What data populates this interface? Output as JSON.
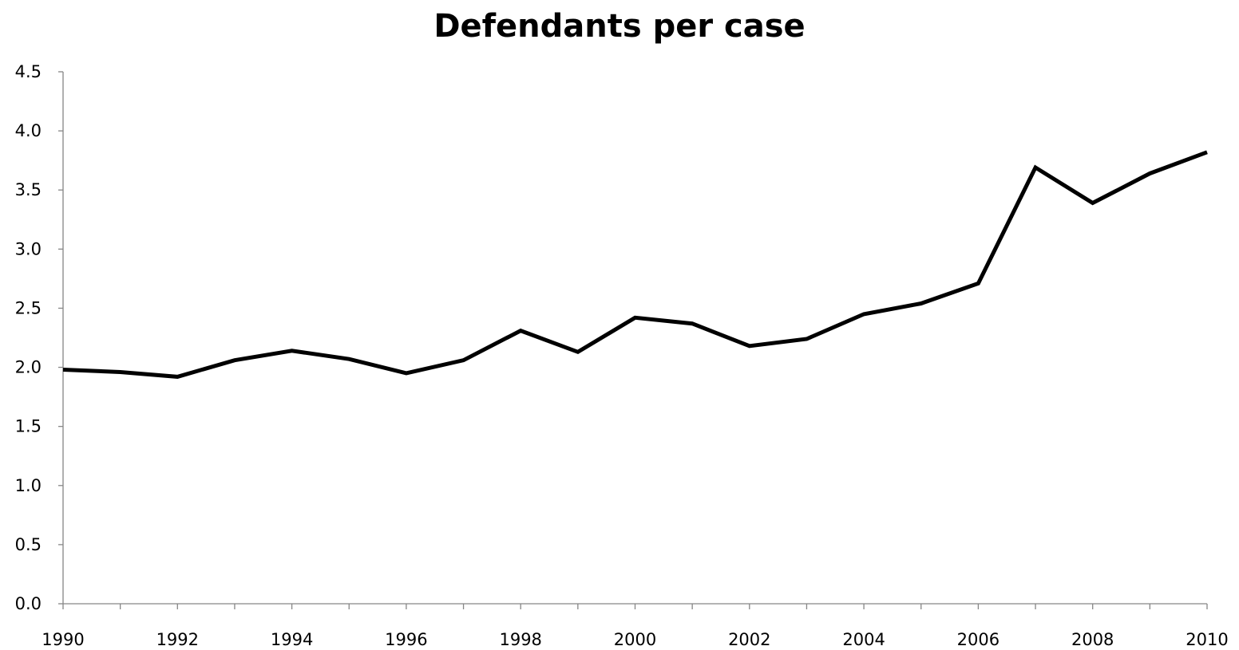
{
  "chart_data": {
    "type": "line",
    "title": "Defendants per case",
    "xlabel": "",
    "ylabel": "",
    "x": [
      1990,
      1991,
      1992,
      1993,
      1994,
      1995,
      1996,
      1997,
      1998,
      1999,
      2000,
      2001,
      2002,
      2003,
      2004,
      2005,
      2006,
      2007,
      2008,
      2009,
      2010
    ],
    "series": [
      {
        "values": [
          1.98,
          1.96,
          1.92,
          2.06,
          2.14,
          2.07,
          1.95,
          2.06,
          2.31,
          2.13,
          2.42,
          2.37,
          2.18,
          2.24,
          2.45,
          2.54,
          2.71,
          3.69,
          3.39,
          3.64,
          3.82
        ],
        "color": "#000000"
      }
    ],
    "xlim": [
      1990,
      2010
    ],
    "ylim": [
      0,
      4.5
    ],
    "xticks": [
      "1990",
      "1992",
      "1994",
      "1996",
      "1998",
      "2000",
      "2002",
      "2004",
      "2006",
      "2008",
      "2010"
    ],
    "yticks": [
      "0.0",
      "0.5",
      "1.0",
      "1.5",
      "2.0",
      "2.5",
      "3.0",
      "3.5",
      "4.0",
      "4.5"
    ],
    "grid": false,
    "legend": "none"
  }
}
